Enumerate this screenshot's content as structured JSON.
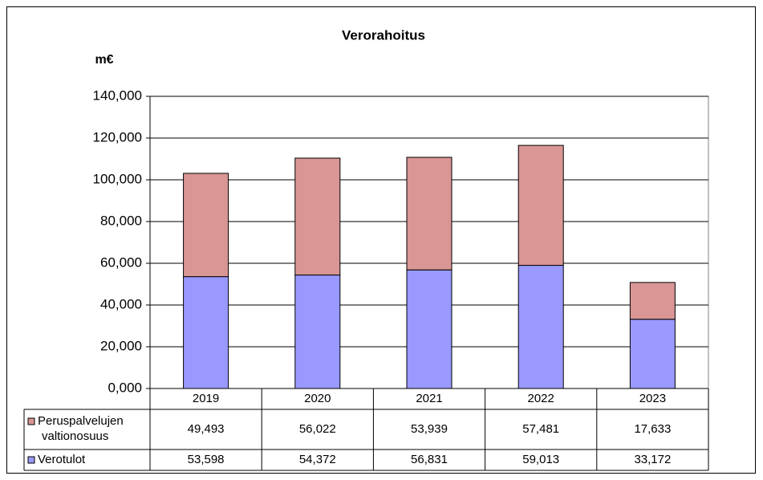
{
  "chart_data": {
    "type": "bar",
    "stacked": true,
    "title": "Verorahoitus",
    "y_label": "m€",
    "categories": [
      "2019",
      "2020",
      "2021",
      "2022",
      "2023"
    ],
    "series": [
      {
        "name": "Verotulot",
        "color": "#9999ff",
        "values": [
          53598,
          54372,
          56831,
          59013,
          33172
        ],
        "value_labels": [
          "53,598",
          "54,372",
          "56,831",
          "59,013",
          "33,172"
        ]
      },
      {
        "name": "Peruspalvelujen valtionosuus",
        "color": "#d99694",
        "values": [
          49493,
          56022,
          53939,
          57481,
          17633
        ],
        "value_labels": [
          "49,493",
          "56,022",
          "53,939",
          "57,481",
          "17,633"
        ]
      }
    ],
    "ylim": [
      0,
      140000
    ],
    "yticks": [
      {
        "value": 0,
        "label": "0,000"
      },
      {
        "value": 20000,
        "label": "20,000"
      },
      {
        "value": 40000,
        "label": "40,000"
      },
      {
        "value": 60000,
        "label": "60,000"
      },
      {
        "value": 80000,
        "label": "80,000"
      },
      {
        "value": 100000,
        "label": "100,000"
      },
      {
        "value": 120000,
        "label": "120,000"
      },
      {
        "value": 140000,
        "label": "140,000"
      }
    ],
    "grid": true,
    "data_table": true
  }
}
